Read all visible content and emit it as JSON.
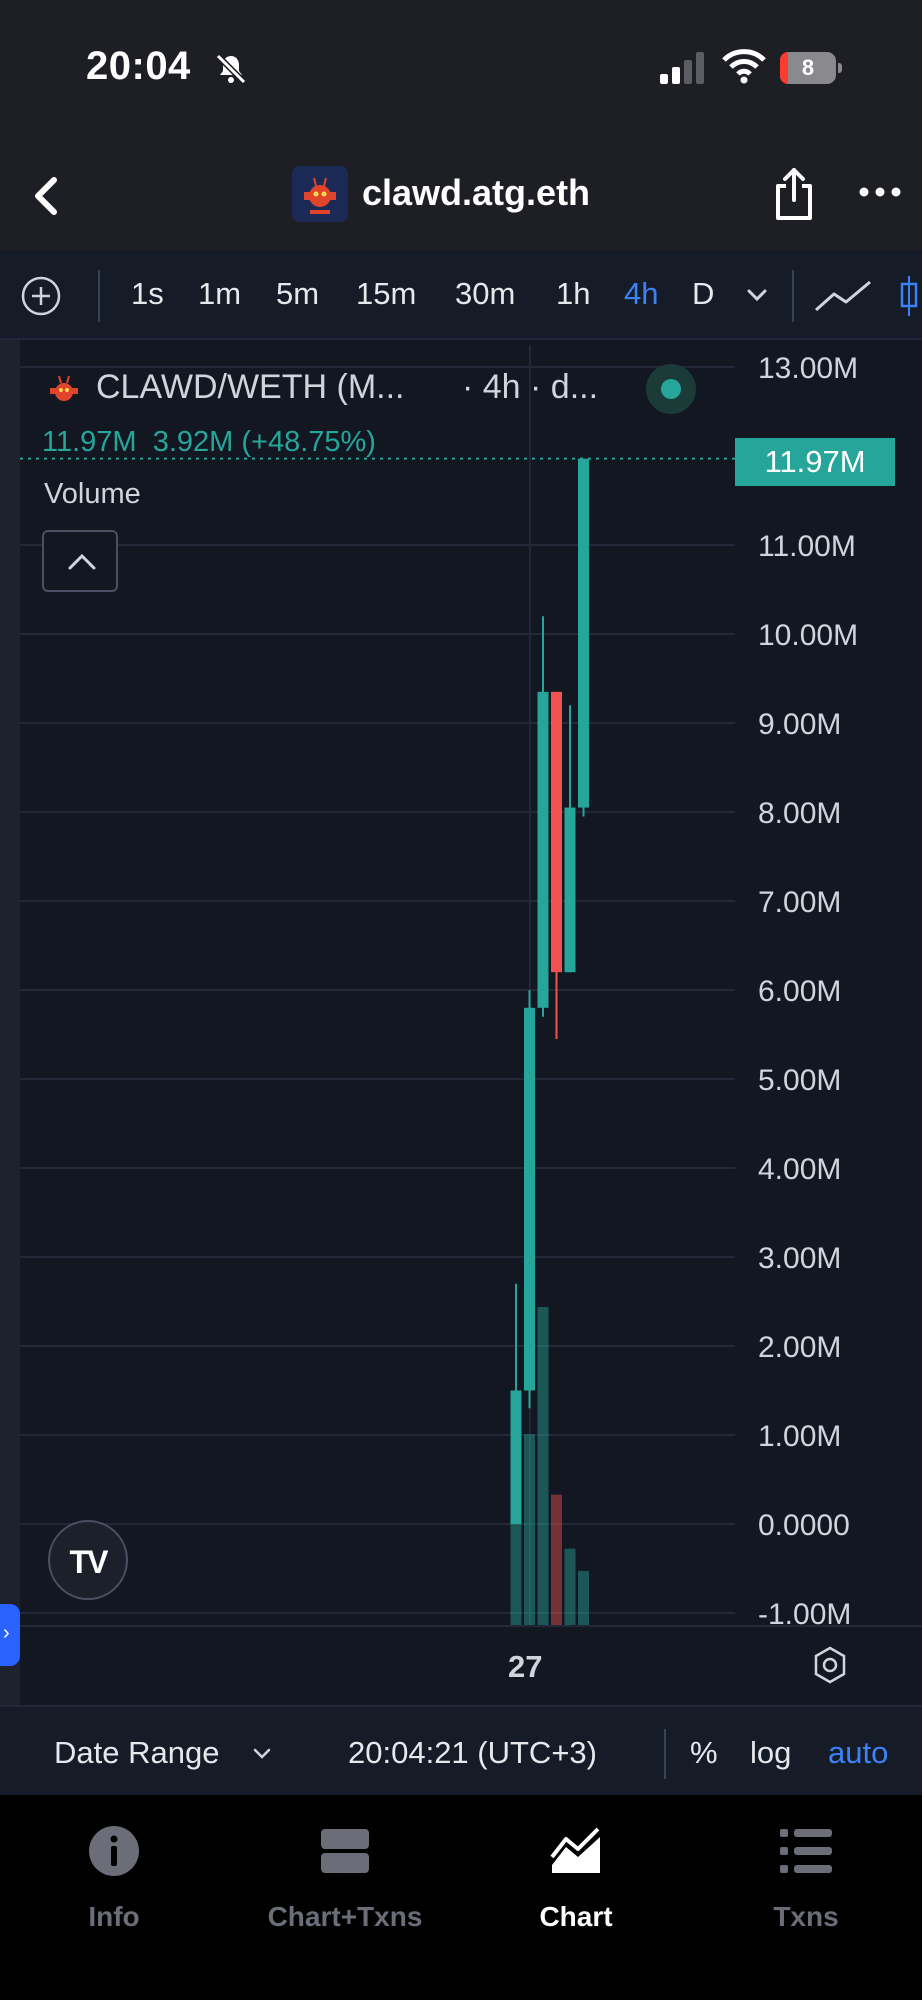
{
  "status_bar": {
    "time": "20:04",
    "battery": "8",
    "icons": [
      "bell-slash-icon",
      "signal-icon",
      "wifi-icon",
      "battery-icon"
    ]
  },
  "nav": {
    "title": "clawd.atg.eth",
    "icons": [
      "back-chevron-icon",
      "share-icon",
      "more-icon"
    ]
  },
  "toolbar": {
    "intervals": [
      "1s",
      "1m",
      "5m",
      "15m",
      "30m",
      "1h",
      "4h",
      "D"
    ],
    "active_interval": "4h",
    "icons": [
      "add-indicator-icon",
      "chevron-down-icon",
      "line-chart-icon"
    ]
  },
  "legend": {
    "pair": "CLAWD/WETH (M...",
    "meta": "· 4h · d...",
    "last": "11.97M",
    "change": "3.92M (+48.75%)",
    "volume_label": "Volume"
  },
  "price_badge": "11.97M",
  "time_axis_label": "27",
  "date_bar": {
    "date_range": "Date Range",
    "clock": "20:04:21 (UTC+3)",
    "percent": "%",
    "log": "log",
    "auto": "auto"
  },
  "tabs": [
    {
      "label": "Info",
      "icon": "info-icon"
    },
    {
      "label": "Chart+Txns",
      "icon": "split-view-icon"
    },
    {
      "label": "Chart",
      "icon": "area-chart-icon",
      "active": true
    },
    {
      "label": "Txns",
      "icon": "list-icon"
    }
  ],
  "colors": {
    "up": "#26a69a",
    "down": "#ef5350",
    "accent": "#3b82f6",
    "background": "#131722"
  },
  "chart_data": {
    "type": "candlestick",
    "y_ticks": [
      "13.00M",
      "11.00M",
      "10.00M",
      "9.00M",
      "8.00M",
      "7.00M",
      "6.00M",
      "5.00M",
      "4.00M",
      "3.00M",
      "2.00M",
      "1.00M",
      "0.0000",
      "-1.00M"
    ],
    "ylim": [
      -1.0,
      13.0
    ],
    "unit": "M",
    "x_label": "27",
    "candles": [
      {
        "open": 0.0,
        "high": 2.7,
        "low": 0.0,
        "close": 1.5,
        "direction": "up"
      },
      {
        "open": 1.5,
        "high": 6.0,
        "low": 1.3,
        "close": 5.8,
        "direction": "up"
      },
      {
        "open": 5.8,
        "high": 10.2,
        "low": 5.7,
        "close": 9.35,
        "direction": "up"
      },
      {
        "open": 9.35,
        "high": 9.35,
        "low": 5.45,
        "close": 6.2,
        "direction": "down"
      },
      {
        "open": 6.2,
        "high": 9.2,
        "low": 6.2,
        "close": 8.05,
        "direction": "up"
      },
      {
        "open": 8.05,
        "high": 11.97,
        "low": 7.95,
        "close": 11.97,
        "direction": "up"
      }
    ],
    "volume_relative": [
      0.45,
      0.6,
      1.0,
      0.41,
      0.24,
      0.17
    ],
    "last_price": 11.97,
    "grid": true
  }
}
